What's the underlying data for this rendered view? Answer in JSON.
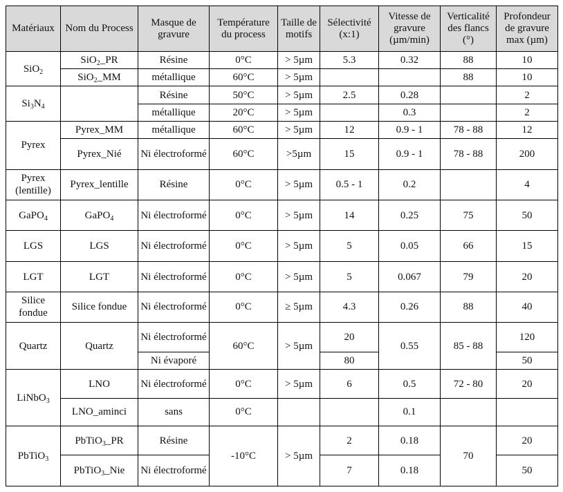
{
  "table": {
    "headers": [
      "Matériaux",
      "Nom du Process",
      "Masque de gravure",
      "Température du process",
      "Taille de motifs",
      "Sélectivité (x:1)",
      "Vitesse de gravure (µm/min)",
      "Verticalité des flancs (°)",
      "Profondeur de gravure max (µm)"
    ],
    "rows": [
      {
        "material": "SiO2",
        "process": "SiO2_PR",
        "mask": "Résine",
        "temp": "0°C",
        "size": "> 5µm",
        "sel": "5.3",
        "speed": "0.32",
        "vert": "88",
        "depth": "10"
      },
      {
        "process": "SiO2_MM",
        "mask": "métallique",
        "temp": "60°C",
        "size": "> 5µm",
        "sel": "",
        "speed": "",
        "vert": "88",
        "depth": "10"
      },
      {
        "material": "Si3N4",
        "process": "",
        "mask": "Résine",
        "temp": "50°C",
        "size": "> 5µm",
        "sel": "2.5",
        "speed": "0.28",
        "vert": "",
        "depth": "2"
      },
      {
        "mask": "métallique",
        "temp": "20°C",
        "size": "> 5µm",
        "sel": "",
        "speed": "0.3",
        "vert": "",
        "depth": "2"
      },
      {
        "material": "Pyrex",
        "process": "Pyrex_MM",
        "mask": "métallique",
        "temp": "60°C",
        "size": "> 5µm",
        "sel": "12",
        "speed": "0.9 - 1",
        "vert": "78 - 88",
        "depth": "12"
      },
      {
        "process": "Pyrex_Nié",
        "mask": "Ni électroformé",
        "temp": "60°C",
        "size": ">5µm",
        "sel": "15",
        "speed": "0.9 - 1",
        "vert": "78 - 88",
        "depth": "200"
      },
      {
        "material": "Pyrex (lentille)",
        "process": "Pyrex_lentille",
        "mask": "Résine",
        "temp": "0°C",
        "size": "> 5µm",
        "sel": "0.5 - 1",
        "speed": "0.2",
        "vert": "",
        "depth": "4"
      },
      {
        "material": "GaPO4",
        "process": "GaPO4",
        "mask": "Ni électroformé",
        "temp": "0°C",
        "size": "> 5µm",
        "sel": "14",
        "speed": "0.25",
        "vert": "75",
        "depth": "50"
      },
      {
        "material": "LGS",
        "process": "LGS",
        "mask": "Ni électroformé",
        "temp": "0°C",
        "size": "> 5µm",
        "sel": "5",
        "speed": "0.05",
        "vert": "66",
        "depth": "15"
      },
      {
        "material": "LGT",
        "process": "LGT",
        "mask": "Ni électroformé",
        "temp": "0°C",
        "size": "> 5µm",
        "sel": "5",
        "speed": "0.067",
        "vert": "79",
        "depth": "20"
      },
      {
        "material": "Silice fondue",
        "process": "Silice fondue",
        "mask": "Ni électroformé",
        "temp": "0°C",
        "size": "≥ 5µm",
        "sel": "4.3",
        "speed": "0.26",
        "vert": "88",
        "depth": "40"
      },
      {
        "material": "Quartz",
        "process": "Quartz",
        "mask": "Ni électroformé",
        "temp": "60°C",
        "size": "> 5µm",
        "sel": "20",
        "speed": "0.55",
        "vert": "85 - 88",
        "depth": "120"
      },
      {
        "mask": "Ni évaporé",
        "sel": "80",
        "depth": "50"
      },
      {
        "material": "LiNbO3",
        "process": "LNO",
        "mask": "Ni électroformé",
        "temp": "0°C",
        "size": "> 5µm",
        "sel": "6",
        "speed": "0.5",
        "vert": "72 - 80",
        "depth": "20"
      },
      {
        "process": "LNO_aminci",
        "mask": "sans",
        "temp": "0°C",
        "size": "",
        "sel": "",
        "speed": "0.1",
        "vert": "",
        "depth": ""
      },
      {
        "material": "PbTiO3",
        "process": "PbTiO3_PR",
        "mask": "Résine",
        "temp": "-10°C",
        "size": "> 5µm",
        "sel": "2",
        "speed": "0.18",
        "vert": "70",
        "depth": "20"
      },
      {
        "process": "PbTiO3_Nie",
        "mask": "Ni électroformé",
        "sel": "7",
        "speed": "0.18",
        "depth": "50"
      }
    ]
  }
}
